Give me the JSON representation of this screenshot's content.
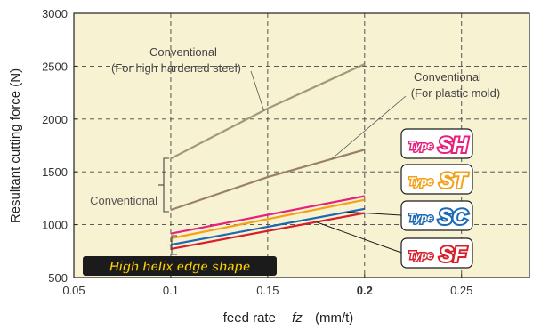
{
  "chart_data": {
    "type": "line",
    "title": "",
    "xlabel_main": "feed rate",
    "xlabel_symbol": "fz",
    "xlabel_unit": "(mm/t)",
    "ylabel": "Resultant cutting force (N)",
    "xlim": [
      0.05,
      0.285
    ],
    "ylim": [
      500,
      3000
    ],
    "grid": true,
    "background_color": "#f7f2d2",
    "x_ticks": [
      {
        "value": 0.05,
        "label": "0.05"
      },
      {
        "value": 0.1,
        "label": "0.1"
      },
      {
        "value": 0.15,
        "label": "0.15"
      },
      {
        "value": 0.2,
        "label": "0.2",
        "color": "#e8202a"
      },
      {
        "value": 0.25,
        "label": "0.25"
      }
    ],
    "y_ticks": [
      {
        "value": 500,
        "label": "500"
      },
      {
        "value": 1000,
        "label": "1000"
      },
      {
        "value": 1500,
        "label": "1500"
      },
      {
        "value": 2000,
        "label": "2000"
      },
      {
        "value": 2500,
        "label": "2500"
      },
      {
        "value": 3000,
        "label": "3000"
      }
    ],
    "series": [
      {
        "key": "conv_hardened",
        "color": "#a09a78",
        "x": [
          0.1,
          0.15,
          0.2
        ],
        "y": [
          1625,
          2100,
          2520
        ]
      },
      {
        "key": "conv_plastic",
        "color": "#9b8068",
        "x": [
          0.1,
          0.15,
          0.2
        ],
        "y": [
          1140,
          1450,
          1710
        ]
      },
      {
        "key": "SH",
        "color": "#e7227d",
        "x": [
          0.1,
          0.2
        ],
        "y": [
          915,
          1270
        ]
      },
      {
        "key": "ST",
        "color": "#f4a11a",
        "x": [
          0.1,
          0.2
        ],
        "y": [
          870,
          1235
        ]
      },
      {
        "key": "SC",
        "color": "#1b69b4",
        "x": [
          0.1,
          0.2
        ],
        "y": [
          810,
          1150
        ]
      },
      {
        "key": "SF",
        "color": "#d81e2b",
        "x": [
          0.1,
          0.2
        ],
        "y": [
          770,
          1110
        ]
      }
    ],
    "annotations": {
      "conv_hardened_l1": "Conventional",
      "conv_hardened_l2": "(For high hardened steel)",
      "conv_plastic_l1": "Conventional",
      "conv_plastic_l2": "(For plastic mold)",
      "conventional": "Conventional",
      "high_helix": "High helix edge shape"
    },
    "badges": [
      {
        "key": "SH",
        "type_text": "Type",
        "code": "SH",
        "color": "#e7227d",
        "target_y": 1270
      },
      {
        "key": "ST",
        "type_text": "Type",
        "code": "ST",
        "color": "#f4a11a",
        "target_y": 1235
      },
      {
        "key": "SC",
        "type_text": "Type",
        "code": "SC",
        "color": "#1b69b4",
        "target_y": 1150
      },
      {
        "key": "SF",
        "type_text": "Type",
        "code": "SF",
        "color": "#d81e2b",
        "target_y": 1110
      }
    ]
  }
}
